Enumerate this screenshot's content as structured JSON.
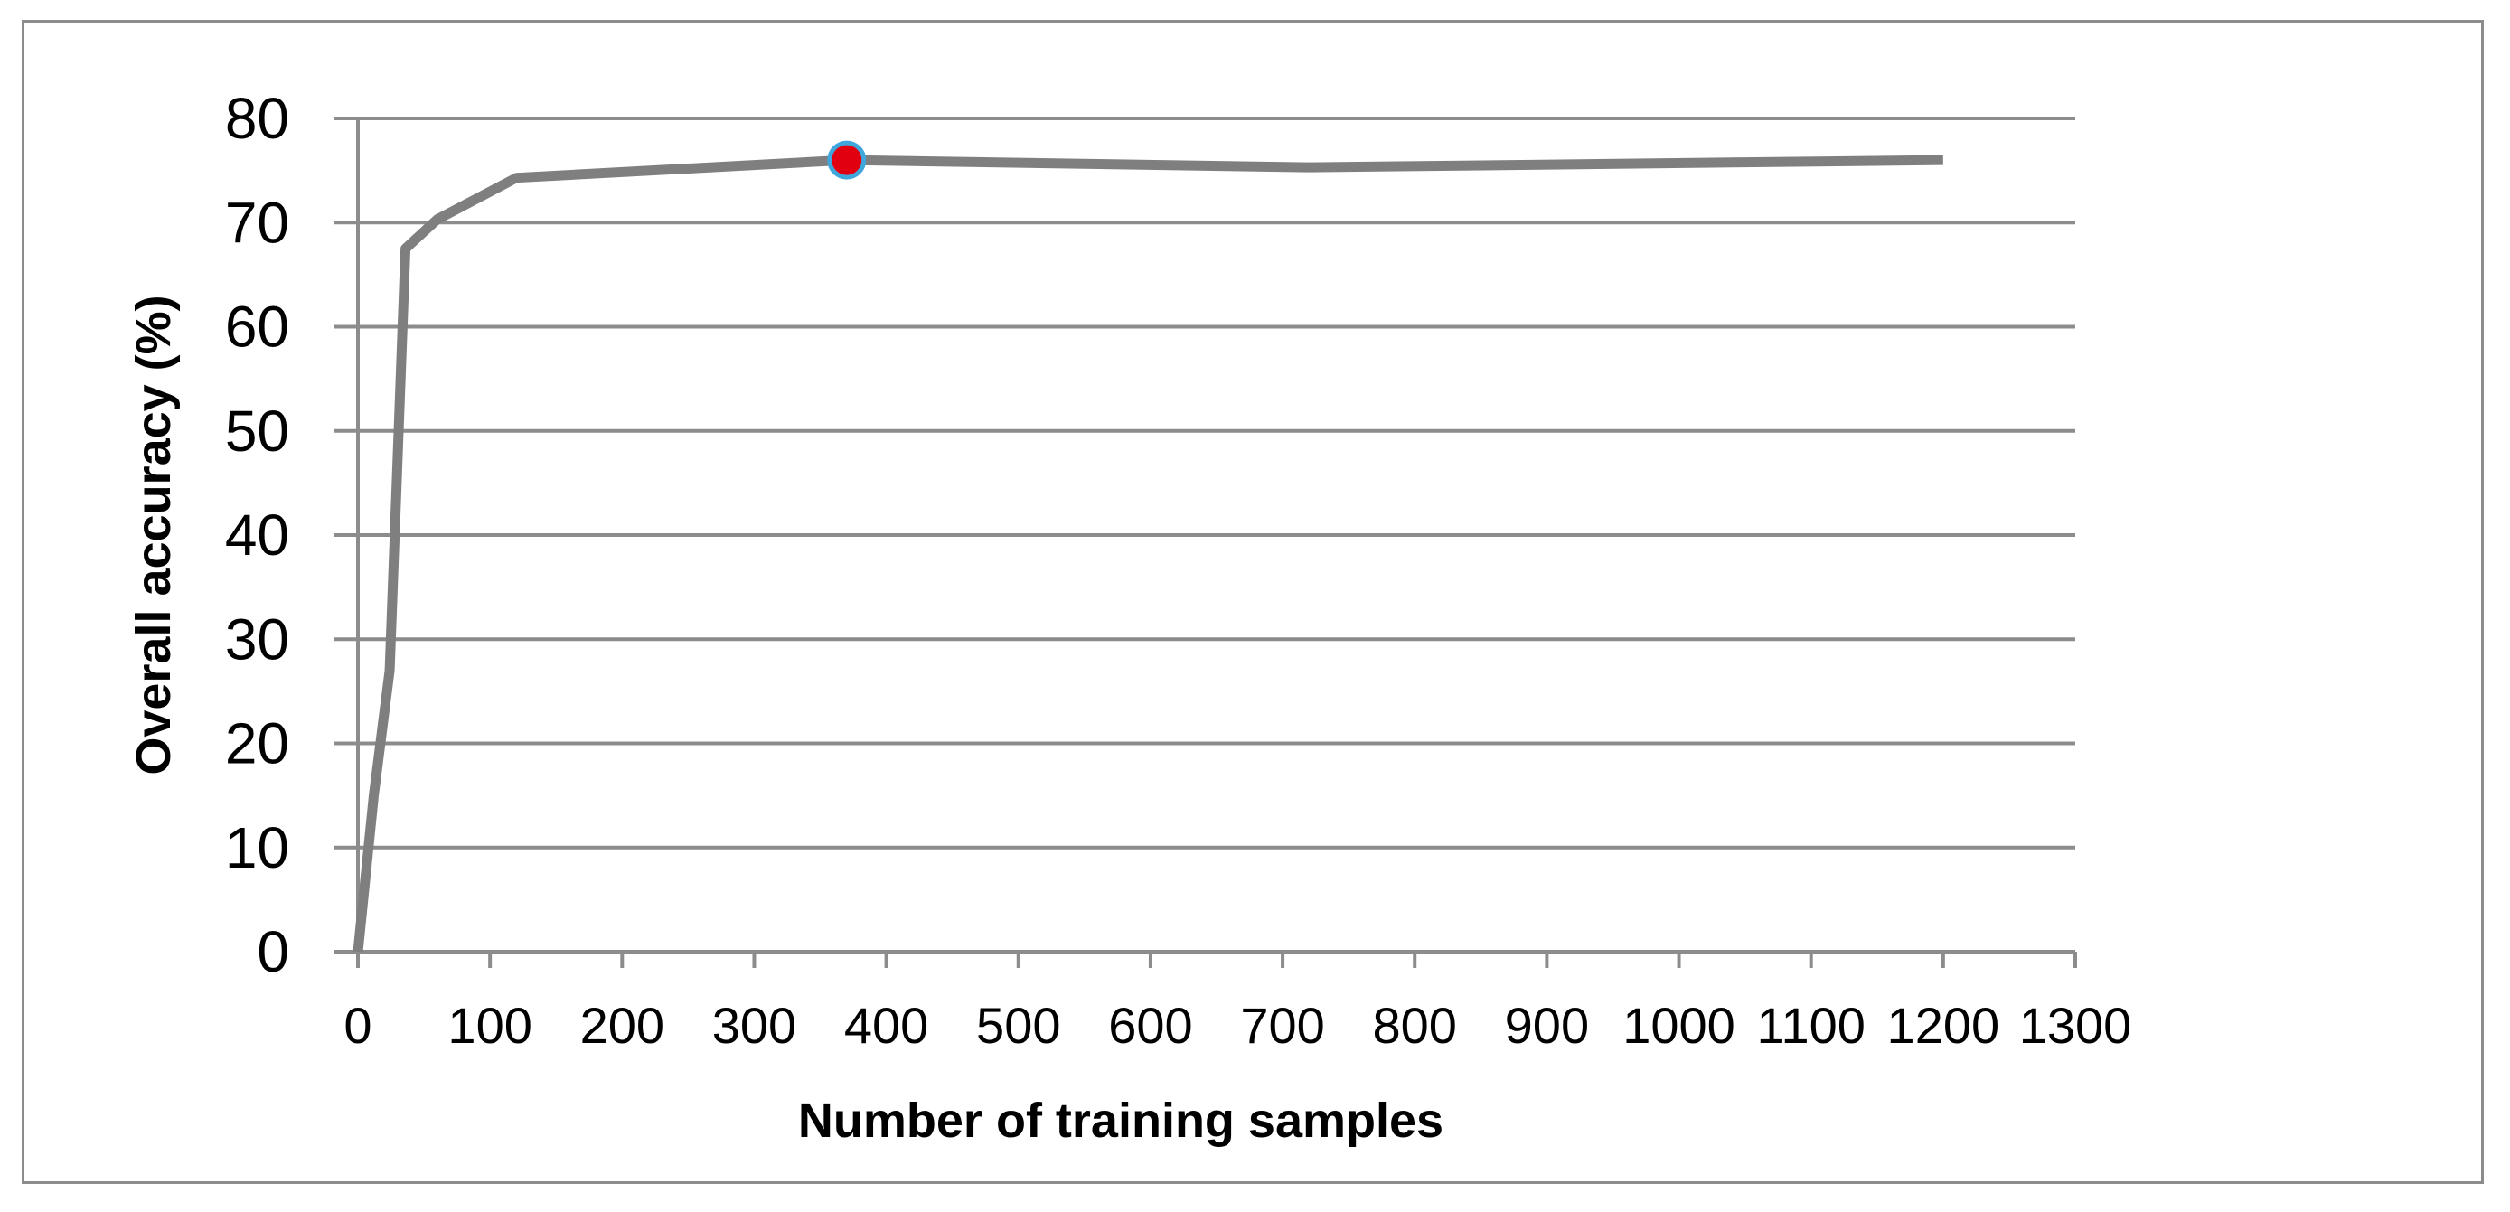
{
  "chart_data": {
    "type": "line",
    "title": "",
    "xlabel": "Number of training samples",
    "ylabel": "Overall accuracy (%)",
    "xlim": [
      0,
      1300
    ],
    "ylim": [
      0,
      80
    ],
    "x_ticks": [
      0,
      100,
      200,
      300,
      400,
      500,
      600,
      700,
      800,
      900,
      1000,
      1100,
      1200,
      1300
    ],
    "y_ticks": [
      0,
      10,
      20,
      30,
      40,
      50,
      60,
      70,
      80
    ],
    "grid": "horizontal",
    "legend": "none",
    "series": [
      {
        "x": [
          0,
          12,
          24,
          36,
          60,
          120,
          370,
          720,
          1200
        ],
        "y": [
          0,
          15,
          27,
          67.5,
          70.3,
          74.3,
          76,
          75.3,
          76
        ]
      }
    ],
    "highlight_point": {
      "x": 370,
      "y": 76
    },
    "colors": {
      "line": "#7f7f7f",
      "grid": "#8c8c8c",
      "axis": "#8c8c8c",
      "frame": "#8c8c8c",
      "highlight_fill": "#e0000f",
      "highlight_stroke": "#3fa7dc"
    }
  }
}
